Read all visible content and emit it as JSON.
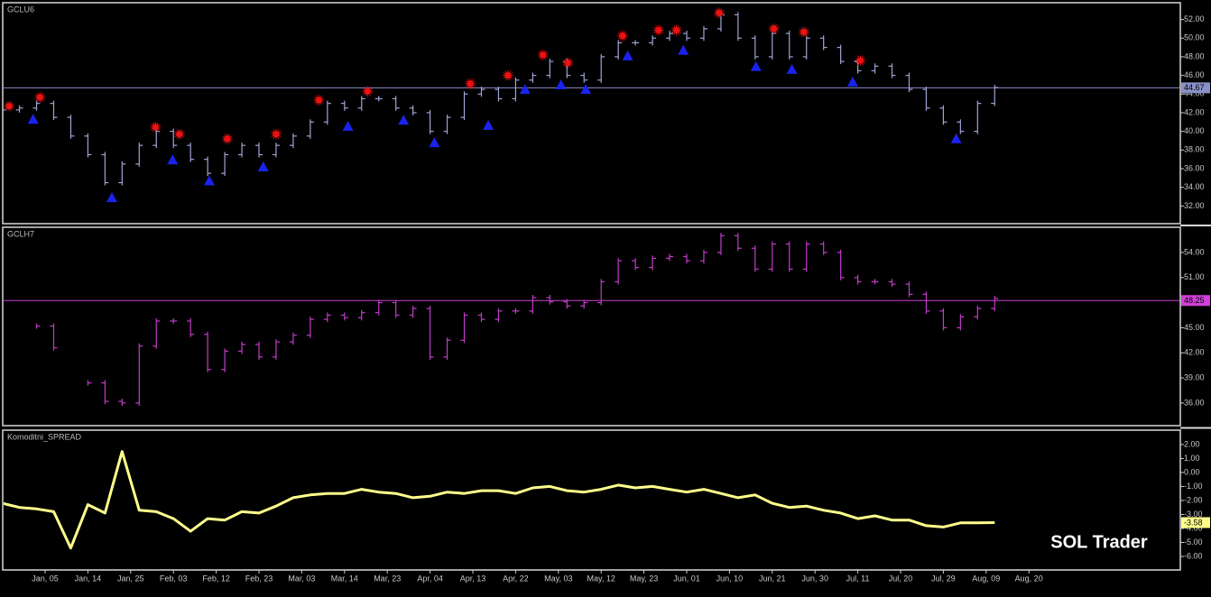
{
  "watermark": "SOL Trader",
  "chart_data": [
    {
      "type": "pricebar",
      "title": "GCLU6",
      "color": "#9ea4d4",
      "line_color": "#8a8ac8",
      "last_fill": "#8890c8",
      "hline": true,
      "xlim": [
        0,
        137.5
      ],
      "ylim": [
        30.2,
        53.7
      ],
      "yticks": [
        {
          "value": 32,
          "label": "32.00"
        },
        {
          "value": 34,
          "label": "34.00"
        },
        {
          "value": 36,
          "label": "36.00"
        },
        {
          "value": 38,
          "label": "38.00"
        },
        {
          "value": 40,
          "label": "40.00"
        },
        {
          "value": 42,
          "label": "42.00"
        },
        {
          "value": 44,
          "label": "44.00"
        },
        {
          "value": 46,
          "label": "46.00"
        },
        {
          "value": 48,
          "label": "48.00"
        },
        {
          "value": 50,
          "label": "50.00"
        },
        {
          "value": 52,
          "label": "52.00"
        }
      ],
      "last": 44.67,
      "x": [
        0,
        2,
        4,
        6,
        8,
        10,
        12,
        14,
        16,
        18,
        20,
        22,
        24,
        26,
        28,
        30,
        32,
        34,
        36,
        38,
        40,
        42,
        44,
        46,
        48,
        50,
        52,
        54,
        56,
        58,
        60,
        62,
        64,
        66,
        68,
        70,
        72,
        74,
        76,
        78,
        80,
        82,
        84,
        86,
        88,
        90,
        92,
        94,
        96,
        98,
        100,
        102,
        104,
        106,
        108,
        110,
        112,
        114,
        116
      ],
      "values": [
        42.3,
        42.5,
        43,
        41.5,
        39.5,
        37.5,
        34.5,
        36.5,
        38.5,
        40,
        38.5,
        37,
        35.5,
        37.5,
        38.5,
        37.5,
        38.5,
        39.5,
        41,
        43,
        42.5,
        43.5,
        43.5,
        42.5,
        42,
        40,
        41.5,
        44,
        44.5,
        43.5,
        45.5,
        46,
        47.5,
        46,
        45.5,
        48,
        49.5,
        49.5,
        50,
        50.5,
        50,
        51,
        52.5,
        50,
        48,
        50.5,
        48,
        50,
        49,
        47.5,
        46.5,
        47,
        46,
        44.5,
        42.5,
        41,
        40,
        43,
        44.7
      ],
      "signals": [
        {
          "marker": "star",
          "color": "#ee1111",
          "x": [
            0.8,
            4.4,
            17.9,
            20.7,
            26.3,
            32,
            37,
            42.7,
            54.7,
            59.1,
            63.2,
            66.1,
            72.5,
            76.7,
            78.8,
            83.8,
            90.2,
            93.7,
            100.3
          ],
          "values": [
            42.7,
            43.65,
            40.45,
            39.7,
            39.2,
            39.7,
            43.35,
            44.3,
            45.1,
            46,
            48.2,
            47.35,
            50.25,
            50.85,
            50.85,
            52.7,
            51,
            50.65,
            47.6
          ]
        },
        {
          "marker": "triangle",
          "color": "#1a22ee",
          "x": [
            3.6,
            12.8,
            19.9,
            24.2,
            30.5,
            40.4,
            46.9,
            50.5,
            56.8,
            61.1,
            65.3,
            68.2,
            73.1,
            79.6,
            88.1,
            92.3,
            99.4,
            111.5
          ],
          "values": [
            41.3,
            32.9,
            36.95,
            34.7,
            36.2,
            40.55,
            41.2,
            38.8,
            40.65,
            44.5,
            45,
            44.5,
            48.1,
            48.7,
            46.95,
            46.65,
            45.3,
            39.2
          ]
        }
      ]
    },
    {
      "type": "pricebar",
      "title": "GCLH7",
      "color": "#c23cc8",
      "line_color": "#d040d8",
      "last_fill": "#d040d8",
      "hline": true,
      "xlim": [
        0,
        137.5
      ],
      "ylim": [
        33.4,
        56.9
      ],
      "yticks": [
        {
          "value": 36,
          "label": "36.00"
        },
        {
          "value": 39,
          "label": "39.00"
        },
        {
          "value": 42,
          "label": "42.00"
        },
        {
          "value": 45,
          "label": "45.00"
        },
        {
          "value": 48,
          "label": "48.00"
        },
        {
          "value": 51,
          "label": "51.00"
        },
        {
          "value": 54,
          "label": "54.00"
        }
      ],
      "last": 48.25,
      "x": [
        0,
        2,
        4,
        6,
        8,
        10,
        12,
        14,
        16,
        18,
        20,
        22,
        24,
        26,
        28,
        30,
        32,
        34,
        36,
        38,
        40,
        42,
        44,
        46,
        48,
        50,
        52,
        54,
        56,
        58,
        60,
        62,
        64,
        66,
        68,
        70,
        72,
        74,
        76,
        78,
        80,
        82,
        84,
        86,
        88,
        90,
        92,
        94,
        96,
        98,
        100,
        102,
        104,
        106,
        108,
        110,
        112,
        114,
        116
      ],
      "values": [
        null,
        null,
        45.2,
        42.6,
        null,
        38.4,
        36.2,
        36,
        42.8,
        45.8,
        45.8,
        44.2,
        40,
        42.2,
        43,
        41.5,
        43.3,
        44.1,
        46,
        46.5,
        46.2,
        46.8,
        48,
        46.5,
        47.3,
        41.5,
        43.5,
        46.5,
        46,
        47,
        47,
        48.6,
        48.1,
        47.6,
        48,
        50.5,
        53,
        52.2,
        53.3,
        53.5,
        53,
        54,
        56,
        54.5,
        52,
        55,
        52,
        55,
        54,
        51,
        50.5,
        50.5,
        50.2,
        49,
        47,
        45,
        46.3,
        47.3,
        48.5
      ]
    },
    {
      "type": "line",
      "title": "Komoditni_SPREAD",
      "color": "#ffff8c",
      "last_fill": "#ffff8c",
      "hline": false,
      "xlim": [
        0,
        137.5
      ],
      "ylim": [
        -6.9,
        2.96
      ],
      "yticks": [
        {
          "value": 2,
          "label": "2.00"
        },
        {
          "value": 1,
          "label": "1.00"
        },
        {
          "value": 0,
          "label": "0.00"
        },
        {
          "value": -1,
          "label": "-1.00"
        },
        {
          "value": -2,
          "label": "-2.00"
        },
        {
          "value": -3,
          "label": "-3.00"
        },
        {
          "value": -4,
          "label": "-4.00"
        },
        {
          "value": -5,
          "label": "-5.00"
        },
        {
          "value": -6,
          "label": "-6.00"
        }
      ],
      "last": -3.58,
      "xticks": [
        {
          "value": 5,
          "label": "Jan, 05"
        },
        {
          "value": 10,
          "label": "Jan, 14"
        },
        {
          "value": 15,
          "label": "Jan, 25"
        },
        {
          "value": 20,
          "label": "Feb, 03"
        },
        {
          "value": 25,
          "label": "Feb, 12"
        },
        {
          "value": 30,
          "label": "Feb, 23"
        },
        {
          "value": 35,
          "label": "Mar, 03"
        },
        {
          "value": 40,
          "label": "Mar, 14"
        },
        {
          "value": 45,
          "label": "Mar, 23"
        },
        {
          "value": 50,
          "label": "Apr, 04"
        },
        {
          "value": 55,
          "label": "Apr, 13"
        },
        {
          "value": 60,
          "label": "Apr, 22"
        },
        {
          "value": 65,
          "label": "May, 03"
        },
        {
          "value": 70,
          "label": "May, 12"
        },
        {
          "value": 75,
          "label": "May, 23"
        },
        {
          "value": 80,
          "label": "Jun, 01"
        },
        {
          "value": 85,
          "label": "Jun, 10"
        },
        {
          "value": 90,
          "label": "Jun, 21"
        },
        {
          "value": 95,
          "label": "Jun, 30"
        },
        {
          "value": 100,
          "label": "Jul, 11"
        },
        {
          "value": 105,
          "label": "Jul, 20"
        },
        {
          "value": 110,
          "label": "Jul, 29"
        },
        {
          "value": 115,
          "label": "Aug, 09"
        },
        {
          "value": 120,
          "label": "Aug, 20"
        }
      ],
      "x": [
        0,
        2,
        4,
        6,
        8,
        10,
        12,
        14,
        16,
        18,
        20,
        22,
        24,
        26,
        28,
        30,
        32,
        34,
        36,
        38,
        40,
        42,
        44,
        46,
        48,
        50,
        52,
        54,
        56,
        58,
        60,
        62,
        64,
        66,
        68,
        70,
        72,
        74,
        76,
        78,
        80,
        82,
        84,
        86,
        88,
        90,
        92,
        94,
        96,
        98,
        100,
        102,
        104,
        106,
        108,
        110,
        112,
        114,
        116
      ],
      "values": [
        -2.2,
        -2.5,
        -2.6,
        -2.8,
        -5.4,
        -2.3,
        -2.9,
        1.5,
        -2.7,
        -2.8,
        -3.3,
        -4.2,
        -3.3,
        -3.4,
        -2.8,
        -2.9,
        -2.4,
        -1.8,
        -1.6,
        -1.5,
        -1.5,
        -1.2,
        -1.4,
        -1.5,
        -1.8,
        -1.7,
        -1.4,
        -1.5,
        -1.3,
        -1.3,
        -1.5,
        -1.1,
        -1.0,
        -1.3,
        -1.4,
        -1.2,
        -0.9,
        -1.1,
        -1.0,
        -1.2,
        -1.4,
        -1.2,
        -1.5,
        -1.8,
        -1.6,
        -2.2,
        -2.5,
        -2.4,
        -2.7,
        -2.9,
        -3.3,
        -3.1,
        -3.4,
        -3.4,
        -3.8,
        -3.9,
        -3.6,
        -3.6,
        -3.58
      ]
    }
  ]
}
